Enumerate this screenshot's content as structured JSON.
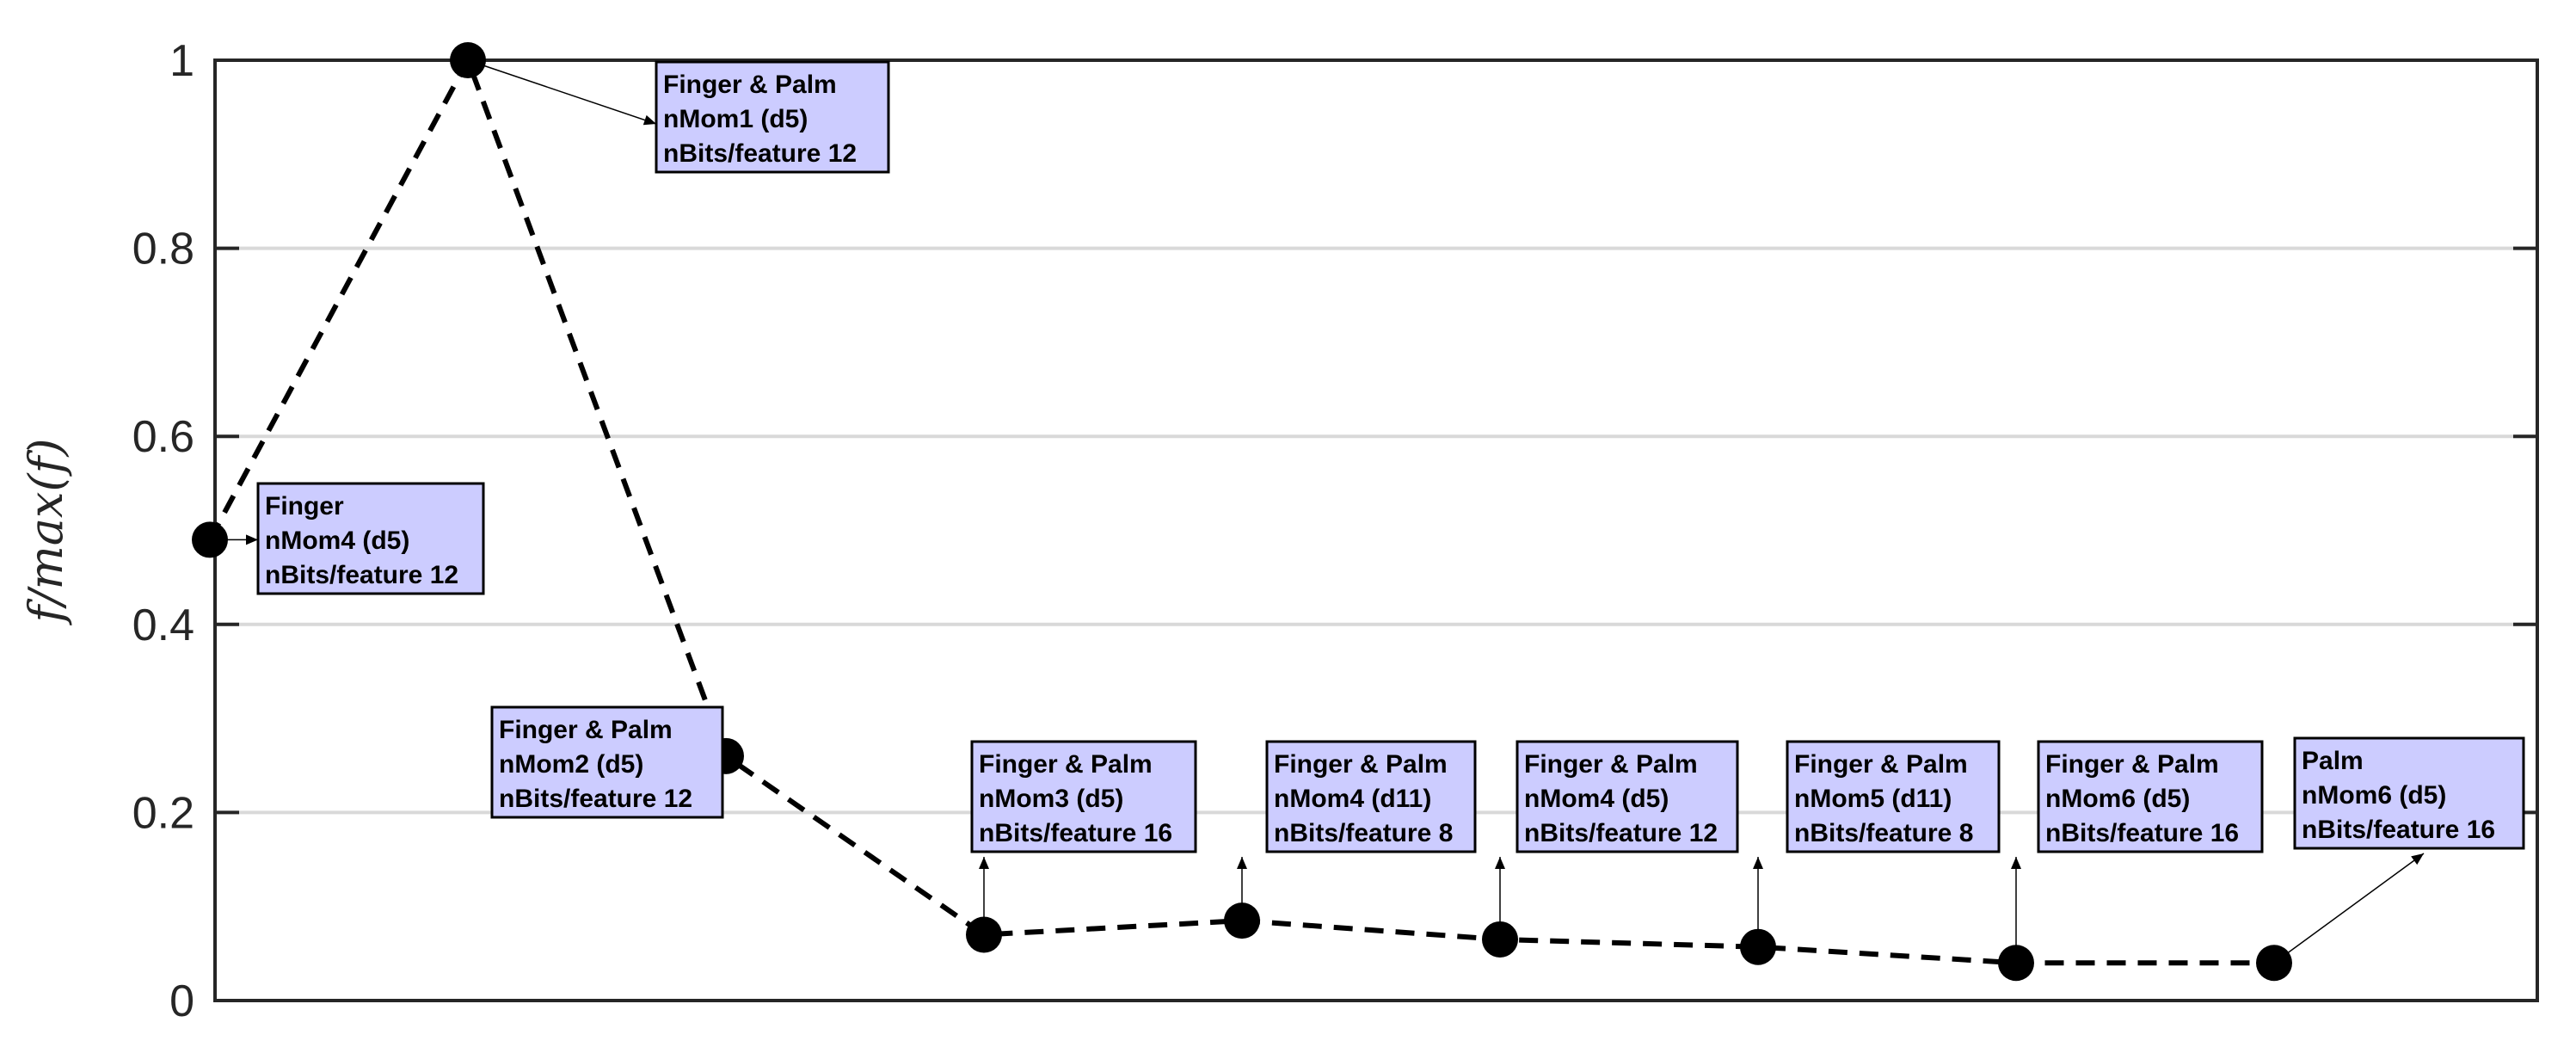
{
  "chart_data": {
    "type": "line",
    "title": "",
    "xlabel": "",
    "ylabel": "f/max(f)",
    "ylim": [
      0,
      1
    ],
    "xlim": [
      0,
      9
    ],
    "grid": "horizontal",
    "yticks": [
      {
        "value": 0,
        "label": "0"
      },
      {
        "value": 0.2,
        "label": "0.2"
      },
      {
        "value": 0.4,
        "label": "0.4"
      },
      {
        "value": 0.6,
        "label": "0.6"
      },
      {
        "value": 0.8,
        "label": "0.8"
      },
      {
        "value": 1,
        "label": "1"
      }
    ],
    "series": [
      {
        "x": [
          0,
          1,
          2,
          3,
          4,
          5,
          6,
          7,
          8
        ],
        "values": [
          0.49,
          1.0,
          0.26,
          0.07,
          0.085,
          0.065,
          0.057,
          0.04,
          0.04
        ]
      }
    ],
    "annotations": [
      {
        "point": 0,
        "lines": [
          "Finger",
          "nMom4 (d5)",
          "nBits/feature 12"
        ]
      },
      {
        "point": 1,
        "lines": [
          "Finger & Palm",
          "nMom1 (d5)",
          "nBits/feature 12"
        ]
      },
      {
        "point": 2,
        "lines": [
          "Finger & Palm",
          "nMom2 (d5)",
          "nBits/feature 12"
        ]
      },
      {
        "point": 3,
        "lines": [
          "Finger & Palm",
          "nMom3 (d5)",
          "nBits/feature 16"
        ]
      },
      {
        "point": 4,
        "lines": [
          "Finger & Palm",
          "nMom4 (d11)",
          "nBits/feature 8"
        ]
      },
      {
        "point": 5,
        "lines": [
          "Finger & Palm",
          "nMom4 (d5)",
          "nBits/feature 12"
        ]
      },
      {
        "point": 6,
        "lines": [
          "Finger & Palm",
          "nMom5 (d11)",
          "nBits/feature 8"
        ]
      },
      {
        "point": 7,
        "lines": [
          "Finger & Palm",
          "nMom6 (d5)",
          "nBits/feature 16"
        ]
      },
      {
        "point": 8,
        "lines": [
          "Palm",
          "nMom6 (d5)",
          "nBits/feature 16"
        ]
      }
    ],
    "colors": {
      "line": "#000000",
      "annotation_box": "#ccccff",
      "grid": "#d9d9d9"
    }
  }
}
